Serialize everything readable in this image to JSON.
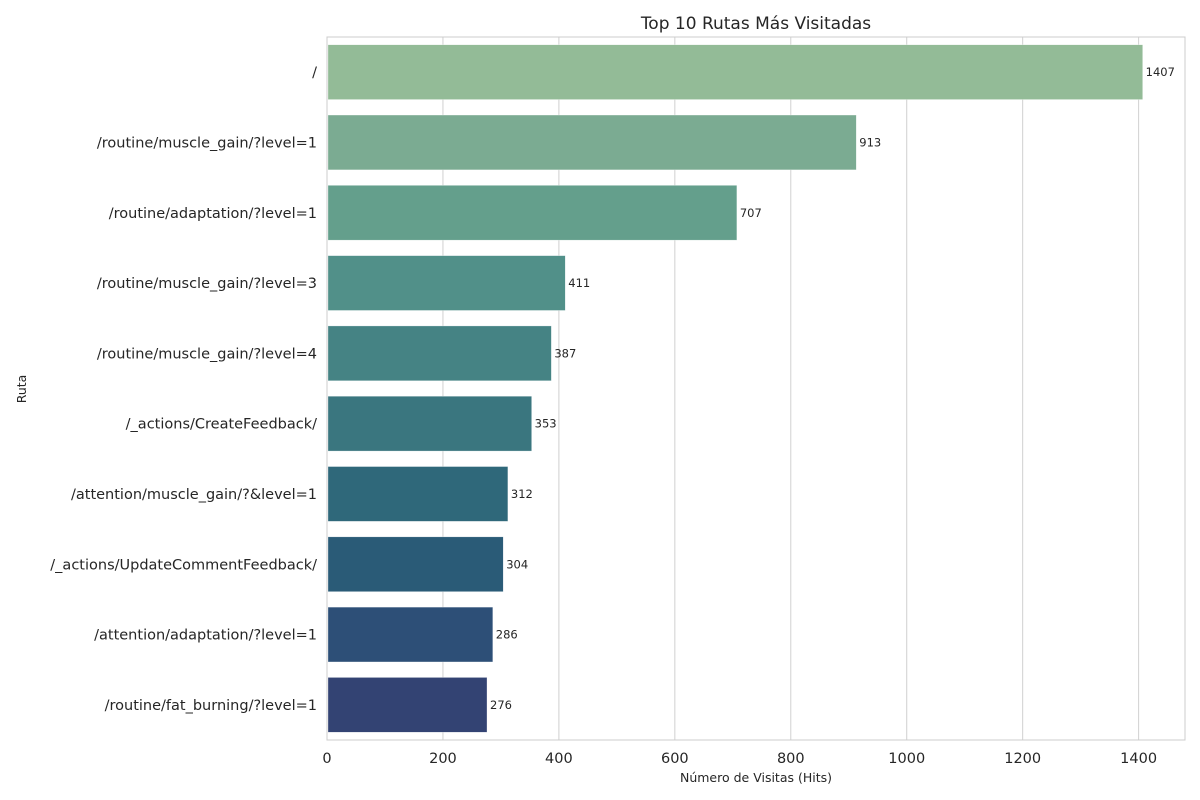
{
  "chart_data": {
    "type": "bar",
    "orientation": "horizontal",
    "title": "Top 10 Rutas Más Visitadas",
    "xlabel": "Número de Visitas (Hits)",
    "ylabel": "Ruta",
    "categories": [
      "/",
      "/routine/muscle_gain/?level=1",
      "/routine/adaptation/?level=1",
      "/routine/muscle_gain/?level=3",
      "/routine/muscle_gain/?level=4",
      "/_actions/CreateFeedback/",
      "/attention/muscle_gain/?&level=1",
      "/_actions/UpdateCommentFeedback/",
      "/attention/adaptation/?level=1",
      "/routine/fat_burning/?level=1"
    ],
    "values": [
      1407,
      913,
      707,
      411,
      387,
      353,
      312,
      304,
      286,
      276
    ],
    "data_labels": [
      "1407",
      "913",
      "707",
      "411",
      "387",
      "353",
      "312",
      "304",
      "286",
      "276"
    ],
    "xlim": [
      0,
      1480
    ],
    "xticks": [
      0,
      200,
      400,
      600,
      800,
      1000,
      1200,
      1400
    ],
    "xtick_labels": [
      "0",
      "200",
      "400",
      "600",
      "800",
      "1000",
      "1200",
      "1400"
    ],
    "grid": "vertical",
    "colors": [
      "#93bb97",
      "#7bab92",
      "#649f8c",
      "#519089",
      "#458384",
      "#3a767f",
      "#2f687a",
      "#2a5b77",
      "#2d4f77",
      "#334373"
    ]
  }
}
